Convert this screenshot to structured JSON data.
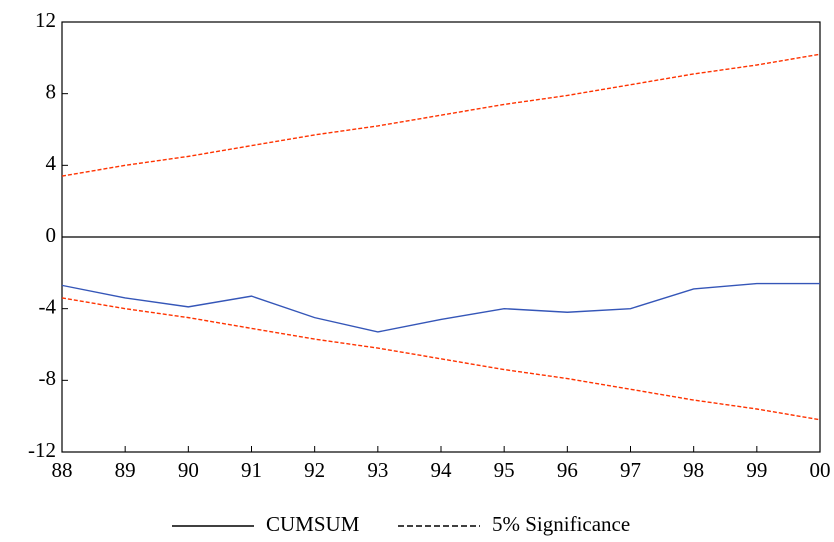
{
  "chart_data": {
    "type": "line",
    "categories": [
      "88",
      "89",
      "90",
      "91",
      "92",
      "93",
      "94",
      "95",
      "96",
      "97",
      "98",
      "99",
      "00"
    ],
    "series": [
      {
        "name": "CUMSUM",
        "color": "#3556b8",
        "legend_color": "#000000",
        "dash": false,
        "values": [
          -2.7,
          -3.4,
          -3.9,
          -3.3,
          -4.5,
          -5.3,
          -4.6,
          -4.0,
          -4.2,
          -4.0,
          -2.9,
          -2.6,
          -2.6
        ]
      },
      {
        "name": "5% Significance",
        "color": "#ff3300",
        "legend_color": "#000000",
        "dash": true,
        "values": [
          3.4,
          4.0,
          4.5,
          5.1,
          5.7,
          6.2,
          6.8,
          7.4,
          7.9,
          8.5,
          9.1,
          9.6,
          10.2
        ],
        "lower_values": [
          -3.4,
          -4.0,
          -4.5,
          -5.1,
          -5.7,
          -6.2,
          -6.8,
          -7.4,
          -7.9,
          -8.5,
          -9.1,
          -9.6,
          -10.2
        ]
      }
    ],
    "ylim": [
      -12,
      12
    ],
    "yticks": [
      12,
      8,
      4,
      0,
      -4,
      -8,
      -12
    ],
    "zero_line": true
  }
}
